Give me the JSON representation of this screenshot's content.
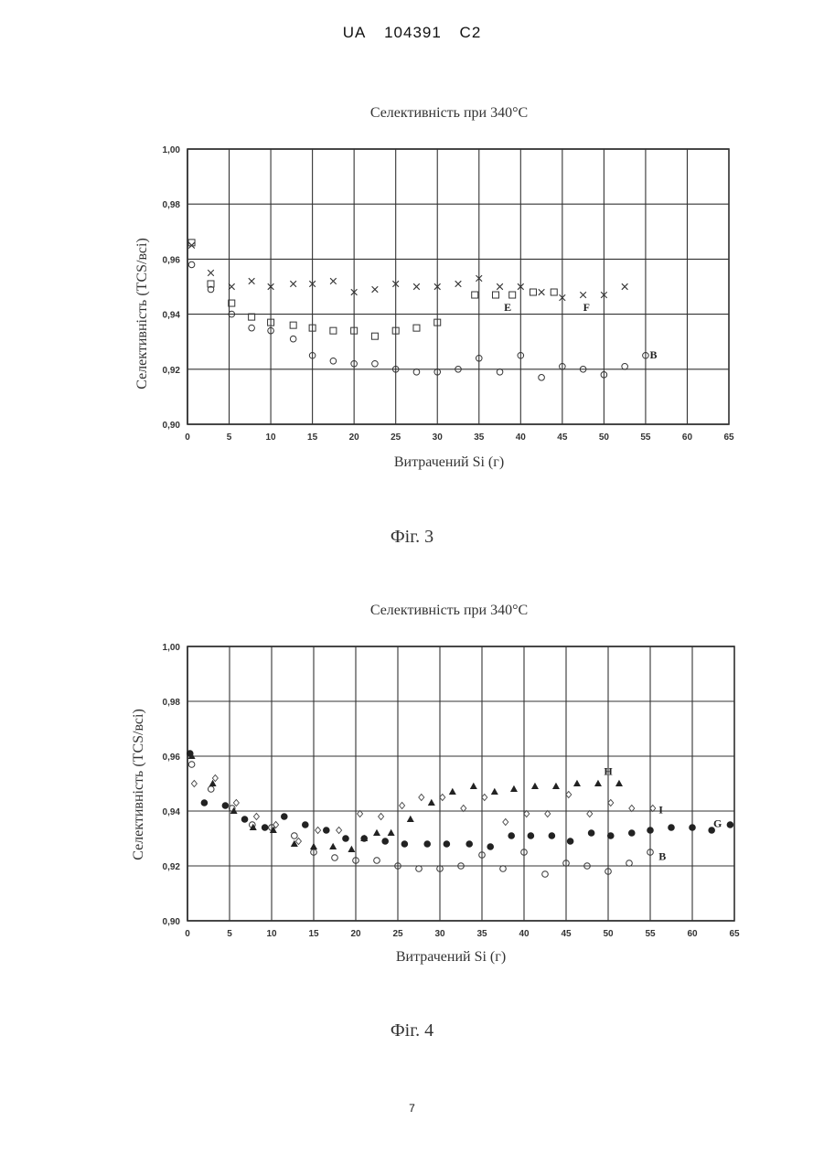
{
  "header": {
    "country": "UA",
    "number": "104391",
    "kind": "C2"
  },
  "page_number": "7",
  "chart_data": [
    {
      "type": "scatter",
      "title": "Селективність при 340°C",
      "xlabel": "Витрачений Si (г)",
      "ylabel": "Селективність (TCS/всі)",
      "caption": "Фіг. 3",
      "xlim": [
        0,
        65
      ],
      "ylim": [
        0.9,
        1.0
      ],
      "xticks": [
        "0",
        "5",
        "10",
        "15",
        "20",
        "25",
        "30",
        "35",
        "40",
        "45",
        "50",
        "55",
        "60",
        "65"
      ],
      "yticks": [
        "0,90",
        "0,92",
        "0,94",
        "0,96",
        "0,98",
        "1,00"
      ],
      "grid": true,
      "series": [
        {
          "name": "B",
          "marker": "circle-open",
          "label_at": [
            55.5,
            0.9253
          ],
          "points": [
            [
              0.5,
              0.958
            ],
            [
              2.8,
              0.949
            ],
            [
              5.3,
              0.94
            ],
            [
              7.7,
              0.935
            ],
            [
              10,
              0.934
            ],
            [
              12.7,
              0.931
            ],
            [
              15,
              0.925
            ],
            [
              17.5,
              0.923
            ],
            [
              20,
              0.922
            ],
            [
              22.5,
              0.922
            ],
            [
              25,
              0.92
            ],
            [
              27.5,
              0.919
            ],
            [
              30,
              0.919
            ],
            [
              32.5,
              0.92
            ],
            [
              35,
              0.924
            ],
            [
              37.5,
              0.919
            ],
            [
              40,
              0.925
            ],
            [
              42.5,
              0.917
            ],
            [
              45,
              0.921
            ],
            [
              47.5,
              0.92
            ],
            [
              50,
              0.918
            ],
            [
              52.5,
              0.921
            ],
            [
              55,
              0.925
            ]
          ]
        },
        {
          "name": "E",
          "marker": "square-open",
          "label_at": [
            38,
            0.9425
          ],
          "points": [
            [
              0.5,
              0.966
            ],
            [
              2.8,
              0.951
            ],
            [
              5.3,
              0.944
            ],
            [
              7.7,
              0.939
            ],
            [
              10,
              0.937
            ],
            [
              12.7,
              0.936
            ],
            [
              15,
              0.935
            ],
            [
              17.5,
              0.934
            ],
            [
              20,
              0.934
            ],
            [
              22.5,
              0.932
            ],
            [
              25,
              0.934
            ],
            [
              27.5,
              0.935
            ],
            [
              30,
              0.937
            ],
            [
              34.5,
              0.947
            ],
            [
              37,
              0.947
            ],
            [
              39,
              0.947
            ],
            [
              41.5,
              0.948
            ],
            [
              44,
              0.948
            ]
          ]
        },
        {
          "name": "F",
          "marker": "x",
          "label_at": [
            47.5,
            0.9425
          ],
          "points": [
            [
              0.5,
              0.965
            ],
            [
              2.8,
              0.955
            ],
            [
              5.3,
              0.95
            ],
            [
              7.7,
              0.952
            ],
            [
              10,
              0.95
            ],
            [
              12.7,
              0.951
            ],
            [
              15,
              0.951
            ],
            [
              17.5,
              0.952
            ],
            [
              20,
              0.948
            ],
            [
              22.5,
              0.949
            ],
            [
              25,
              0.951
            ],
            [
              27.5,
              0.95
            ],
            [
              30,
              0.95
            ],
            [
              32.5,
              0.951
            ],
            [
              35,
              0.953
            ],
            [
              37.5,
              0.95
            ],
            [
              40,
              0.95
            ],
            [
              42.5,
              0.948
            ],
            [
              45,
              0.946
            ],
            [
              47.5,
              0.947
            ],
            [
              50,
              0.947
            ],
            [
              52.5,
              0.95
            ]
          ]
        }
      ]
    },
    {
      "type": "scatter",
      "title": "Селективність при 340°C",
      "xlabel": "Витрачений Si (г)",
      "ylabel": "Селективність (TCS/всі)",
      "caption": "Фіг. 4",
      "xlim": [
        0,
        65
      ],
      "ylim": [
        0.9,
        1.0
      ],
      "xticks": [
        "0",
        "5",
        "10",
        "15",
        "20",
        "25",
        "30",
        "35",
        "40",
        "45",
        "50",
        "55",
        "60",
        "65"
      ],
      "yticks": [
        "0,90",
        "0,92",
        "0,94",
        "0,96",
        "0,98",
        "1,00"
      ],
      "grid": true,
      "series": [
        {
          "name": "B",
          "marker": "circle-open",
          "label_at": [
            56,
            0.9235
          ],
          "points": [
            [
              0.5,
              0.957
            ],
            [
              2.8,
              0.948
            ],
            [
              5.3,
              0.941
            ],
            [
              7.7,
              0.935
            ],
            [
              10,
              0.934
            ],
            [
              12.7,
              0.931
            ],
            [
              15,
              0.925
            ],
            [
              17.5,
              0.923
            ],
            [
              20,
              0.922
            ],
            [
              22.5,
              0.922
            ],
            [
              25,
              0.92
            ],
            [
              27.5,
              0.919
            ],
            [
              30,
              0.919
            ],
            [
              32.5,
              0.92
            ],
            [
              35,
              0.924
            ],
            [
              37.5,
              0.919
            ],
            [
              40,
              0.925
            ],
            [
              42.5,
              0.917
            ],
            [
              45,
              0.921
            ],
            [
              47.5,
              0.92
            ],
            [
              50,
              0.918
            ],
            [
              52.5,
              0.921
            ],
            [
              55,
              0.925
            ]
          ]
        },
        {
          "name": "G",
          "marker": "circle-filled",
          "label_at": [
            62.5,
            0.9355
          ],
          "points": [
            [
              0.3,
              0.961
            ],
            [
              2,
              0.943
            ],
            [
              4.5,
              0.942
            ],
            [
              6.8,
              0.937
            ],
            [
              9.2,
              0.934
            ],
            [
              11.5,
              0.938
            ],
            [
              14,
              0.935
            ],
            [
              16.5,
              0.933
            ],
            [
              18.8,
              0.93
            ],
            [
              21,
              0.93
            ],
            [
              23.5,
              0.929
            ],
            [
              25.8,
              0.928
            ],
            [
              28.5,
              0.928
            ],
            [
              30.8,
              0.928
            ],
            [
              33.5,
              0.928
            ],
            [
              36,
              0.927
            ],
            [
              38.5,
              0.931
            ],
            [
              40.8,
              0.931
            ],
            [
              43.3,
              0.931
            ],
            [
              45.5,
              0.929
            ],
            [
              48,
              0.932
            ],
            [
              50.3,
              0.931
            ],
            [
              52.8,
              0.932
            ],
            [
              55,
              0.933
            ],
            [
              57.5,
              0.934
            ],
            [
              60,
              0.934
            ],
            [
              62.3,
              0.933
            ],
            [
              64.5,
              0.935
            ]
          ]
        },
        {
          "name": "H",
          "marker": "triangle-filled",
          "label_at": [
            49.5,
            0.9545
          ],
          "points": [
            [
              0.5,
              0.96
            ],
            [
              3,
              0.95
            ],
            [
              5.5,
              0.94
            ],
            [
              7.8,
              0.934
            ],
            [
              10.2,
              0.933
            ],
            [
              12.7,
              0.928
            ],
            [
              15,
              0.927
            ],
            [
              17.3,
              0.927
            ],
            [
              19.5,
              0.926
            ],
            [
              21,
              0.93
            ],
            [
              22.5,
              0.932
            ],
            [
              24.2,
              0.932
            ],
            [
              26.5,
              0.937
            ],
            [
              29,
              0.943
            ],
            [
              31.5,
              0.947
            ],
            [
              34,
              0.949
            ],
            [
              36.5,
              0.947
            ],
            [
              38.8,
              0.948
            ],
            [
              41.3,
              0.949
            ],
            [
              43.8,
              0.949
            ],
            [
              46.3,
              0.95
            ],
            [
              48.8,
              0.95
            ],
            [
              51.3,
              0.95
            ]
          ]
        },
        {
          "name": "I",
          "marker": "diamond-open",
          "label_at": [
            56,
            0.9405
          ],
          "points": [
            [
              0.8,
              0.95
            ],
            [
              3.3,
              0.952
            ],
            [
              5.8,
              0.943
            ],
            [
              8.2,
              0.938
            ],
            [
              10.5,
              0.935
            ],
            [
              13.2,
              0.929
            ],
            [
              15.5,
              0.933
            ],
            [
              18,
              0.933
            ],
            [
              20.5,
              0.939
            ],
            [
              23,
              0.938
            ],
            [
              25.5,
              0.942
            ],
            [
              27.8,
              0.945
            ],
            [
              30.3,
              0.945
            ],
            [
              32.8,
              0.941
            ],
            [
              35.3,
              0.945
            ],
            [
              37.8,
              0.936
            ],
            [
              40.3,
              0.939
            ],
            [
              42.8,
              0.939
            ],
            [
              45.3,
              0.946
            ],
            [
              47.8,
              0.939
            ],
            [
              50.3,
              0.943
            ],
            [
              52.8,
              0.941
            ],
            [
              55.3,
              0.941
            ]
          ]
        }
      ]
    }
  ]
}
